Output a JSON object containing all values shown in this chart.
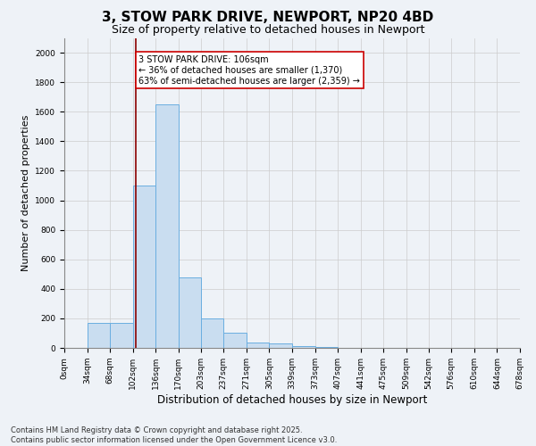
{
  "title1": "3, STOW PARK DRIVE, NEWPORT, NP20 4BD",
  "title2": "Size of property relative to detached houses in Newport",
  "xlabel": "Distribution of detached houses by size in Newport",
  "ylabel": "Number of detached properties",
  "bar_values": [
    0,
    170,
    170,
    1100,
    1650,
    480,
    200,
    105,
    35,
    30,
    15,
    5,
    0,
    0,
    0,
    0,
    0,
    0,
    0,
    0
  ],
  "bin_edges": [
    0,
    34,
    68,
    102,
    136,
    170,
    203,
    237,
    271,
    305,
    339,
    373,
    407,
    441,
    475,
    509,
    542,
    576,
    610,
    644,
    678
  ],
  "tick_labels": [
    "0sqm",
    "34sqm",
    "68sqm",
    "102sqm",
    "136sqm",
    "170sqm",
    "203sqm",
    "237sqm",
    "271sqm",
    "305sqm",
    "339sqm",
    "373sqm",
    "407sqm",
    "441sqm",
    "475sqm",
    "509sqm",
    "542sqm",
    "576sqm",
    "610sqm",
    "644sqm",
    "678sqm"
  ],
  "bar_color": "#c9ddf0",
  "bar_edgecolor": "#6aaee0",
  "vline_x": 106,
  "vline_color": "#8b0000",
  "annotation_text": "3 STOW PARK DRIVE: 106sqm\n← 36% of detached houses are smaller (1,370)\n63% of semi-detached houses are larger (2,359) →",
  "annotation_box_facecolor": "#ffffff",
  "annotation_box_edgecolor": "#cc0000",
  "ylim": [
    0,
    2100
  ],
  "yticks": [
    0,
    200,
    400,
    600,
    800,
    1000,
    1200,
    1400,
    1600,
    1800,
    2000
  ],
  "grid_color": "#cccccc",
  "bg_color": "#eef2f7",
  "footer_text": "Contains HM Land Registry data © Crown copyright and database right 2025.\nContains public sector information licensed under the Open Government Licence v3.0.",
  "title1_fontsize": 11,
  "title2_fontsize": 9,
  "xlabel_fontsize": 8.5,
  "ylabel_fontsize": 8,
  "tick_fontsize": 6.5,
  "annotation_fontsize": 7,
  "footer_fontsize": 6
}
